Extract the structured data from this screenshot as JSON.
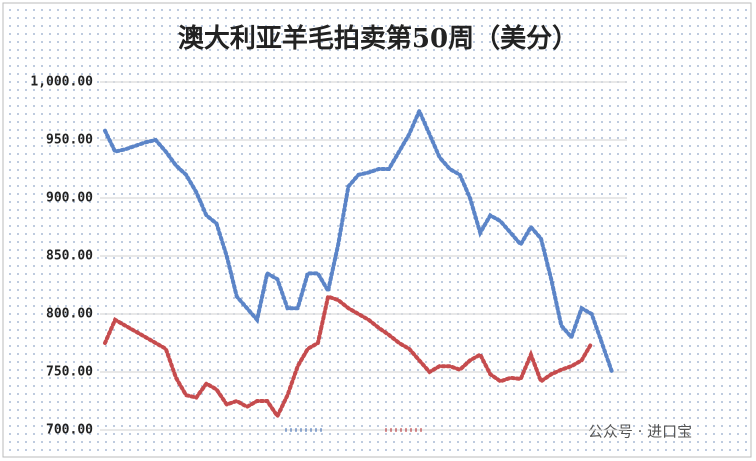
{
  "chart_data": {
    "type": "line",
    "title": "澳大利亚羊毛拍卖第50周（美分）",
    "ylim": [
      700,
      1000
    ],
    "yticks": [
      {
        "value": 700,
        "label": "700.00"
      },
      {
        "value": 750,
        "label": "750.00"
      },
      {
        "value": 800,
        "label": "800.00"
      },
      {
        "value": 850,
        "label": "850.00"
      },
      {
        "value": 900,
        "label": "900.00"
      },
      {
        "value": 950,
        "label": "950.00"
      },
      {
        "value": 1000,
        "label": "1,000.00"
      }
    ],
    "grid": true,
    "series": [
      {
        "color": "#4a78c2",
        "values": [
          958,
          940,
          942,
          945,
          948,
          950,
          940,
          928,
          920,
          905,
          885,
          878,
          850,
          815,
          805,
          795,
          835,
          830,
          805,
          805,
          835,
          835,
          820,
          860,
          910,
          920,
          922,
          925,
          925,
          940,
          955,
          975,
          955,
          935,
          925,
          920,
          900,
          870,
          885,
          880,
          870,
          860,
          875,
          865,
          830,
          790,
          780,
          805,
          800,
          775,
          750
        ]
      },
      {
        "color": "#c0393b",
        "values": [
          775,
          795,
          790,
          785,
          780,
          775,
          770,
          745,
          730,
          728,
          740,
          735,
          722,
          725,
          720,
          725,
          725,
          712,
          730,
          755,
          770,
          775,
          815,
          812,
          805,
          800,
          795,
          788,
          782,
          775,
          770,
          760,
          750,
          755,
          755,
          752,
          760,
          765,
          748,
          742,
          745,
          744,
          765,
          742,
          748,
          752,
          755,
          760,
          775
        ]
      }
    ],
    "watermark": "公众号 · 进口宝"
  }
}
